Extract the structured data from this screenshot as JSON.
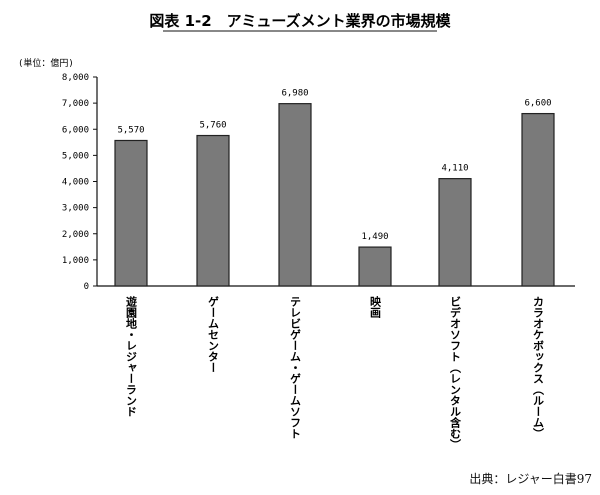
{
  "chart_data": {
    "type": "bar",
    "title": "図表 1-2　アミューズメント業界の市場規模",
    "unit_label": "(単位：億円)",
    "categories": [
      "遊園地・レジャーランド",
      "ゲームセンター",
      "テレビゲーム・ゲームソフト",
      "映画",
      "ビデオソフト（レンタル含む）",
      "カラオケボックス（ルーム）"
    ],
    "values": [
      5570,
      5760,
      6980,
      1490,
      4110,
      6600
    ],
    "value_labels": [
      "5,570",
      "5,760",
      "6,980",
      "1,490",
      "4,110",
      "6,600"
    ],
    "ylim": [
      0,
      8000
    ],
    "y_ticks": [
      "0",
      "1,000",
      "2,000",
      "3,000",
      "4,000",
      "5,000",
      "6,000",
      "7,000",
      "8,000"
    ],
    "grid": false,
    "bar_color": "#7a7a7a"
  },
  "source": "出典：レジャー白書97"
}
